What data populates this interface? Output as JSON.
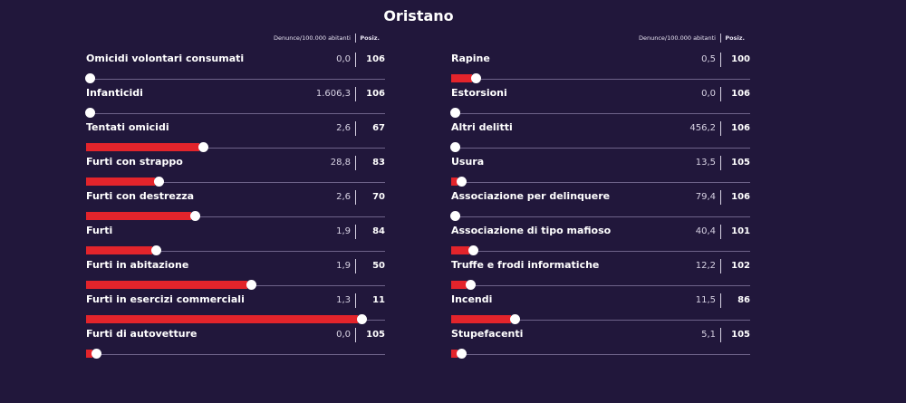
{
  "title": "Oristano",
  "header": {
    "metric_label": "Denunce/100.000 abitanti",
    "rank_label": "Posiz."
  },
  "chart_data": {
    "type": "bar",
    "title": "Oristano",
    "ranking_scale_max": 106,
    "fill_color": "#e3242b",
    "left": [
      {
        "label": "Omicidi volontari consumati",
        "value": "0,0",
        "rank": "106",
        "level": 0.0
      },
      {
        "label": "Infanticidi",
        "value": "1.606,3",
        "rank": "106",
        "level": 0.0
      },
      {
        "label": "Tentati omicidi",
        "value": "2,6",
        "rank": "67",
        "level": 0.38
      },
      {
        "label": "Furti con strappo",
        "value": "28,8",
        "rank": "83",
        "level": 0.23
      },
      {
        "label": "Furti con destrezza",
        "value": "2,6",
        "rank": "70",
        "level": 0.35
      },
      {
        "label": "Furti",
        "value": "1,9",
        "rank": "84",
        "level": 0.22
      },
      {
        "label": "Furti in abitazione",
        "value": "1,9",
        "rank": "50",
        "level": 0.54
      },
      {
        "label": "Furti in esercizi commerciali",
        "value": "1,3",
        "rank": "11",
        "level": 0.91
      },
      {
        "label": "Furti di autovetture",
        "value": "0,0",
        "rank": "105",
        "level": 0.02
      }
    ],
    "right": [
      {
        "label": "Rapine",
        "value": "0,5",
        "rank": "100",
        "level": 0.07
      },
      {
        "label": "Estorsioni",
        "value": "0,0",
        "rank": "106",
        "level": 0.0
      },
      {
        "label": "Altri delitti",
        "value": "456,2",
        "rank": "106",
        "level": 0.0
      },
      {
        "label": "Usura",
        "value": "13,5",
        "rank": "105",
        "level": 0.02
      },
      {
        "label": "Associazione per delinquere",
        "value": "79,4",
        "rank": "106",
        "level": 0.0
      },
      {
        "label": "Associazione di tipo mafioso",
        "value": "40,4",
        "rank": "101",
        "level": 0.06
      },
      {
        "label": "Truffe e frodi informatiche",
        "value": "12,2",
        "rank": "102",
        "level": 0.05
      },
      {
        "label": "Incendi",
        "value": "11,5",
        "rank": "86",
        "level": 0.2
      },
      {
        "label": "Stupefacenti",
        "value": "5,1",
        "rank": "105",
        "level": 0.02
      }
    ]
  }
}
